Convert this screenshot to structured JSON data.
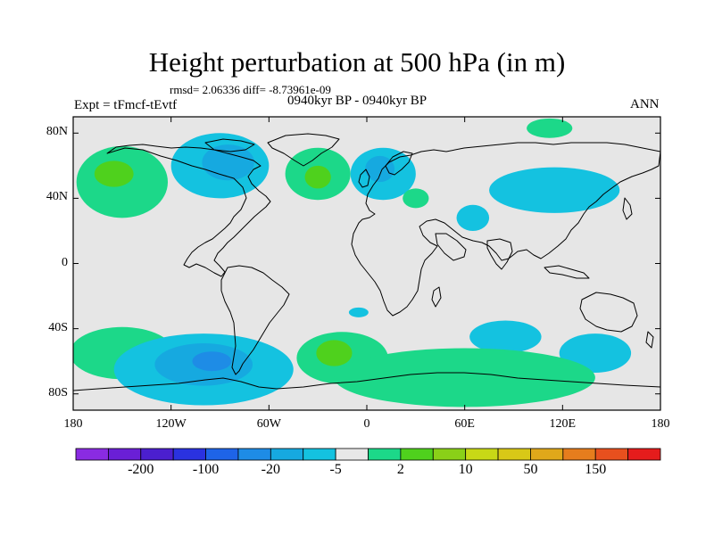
{
  "title": "Height perturbation at 500 hPa (in m)",
  "stats_line": "rmsd= 2.06336 diff= -8.73961e-09",
  "experiment_label": "Expt = tFmcf-tEvtf",
  "period_label": "0940kyr BP - 0940kyr BP",
  "season_label": "ANN",
  "map": {
    "projection": "cylindrical-equidistant",
    "lon_range": [
      -180,
      180
    ],
    "lat_range": [
      -90,
      90
    ],
    "background_color": "#e6e6e6",
    "lat_ticks": [
      {
        "label": "80N",
        "value": 80
      },
      {
        "label": "40N",
        "value": 40
      },
      {
        "label": "0",
        "value": 0
      },
      {
        "label": "40S",
        "value": -40
      },
      {
        "label": "80S",
        "value": -80
      }
    ],
    "lon_ticks": [
      {
        "label": "180",
        "value": -180
      },
      {
        "label": "120W",
        "value": -120
      },
      {
        "label": "60W",
        "value": -60
      },
      {
        "label": "0",
        "value": 0
      },
      {
        "label": "60E",
        "value": 60
      },
      {
        "label": "120E",
        "value": 120
      },
      {
        "label": "180",
        "value": 180
      }
    ]
  },
  "colorbar": {
    "colors": [
      "#8a2be2",
      "#6a1fd6",
      "#4b1fcf",
      "#2a32e0",
      "#1e64e8",
      "#1e8ce6",
      "#16a9e0",
      "#14c2e0",
      "#e8e8e8",
      "#1cd889",
      "#4fd11d",
      "#8ad018",
      "#c8d816",
      "#d8c817",
      "#e0a81a",
      "#e67d1d",
      "#e8501e",
      "#e51c1c"
    ],
    "tick_labels": [
      "-200",
      "-100",
      "-20",
      "-5",
      "2",
      "10",
      "50",
      "150"
    ]
  },
  "chart_data": {
    "type": "heatmap",
    "title": "Height perturbation at 500 hPa (in m)",
    "variable_units": "m",
    "color_scale_labels": [
      "-200",
      "-100",
      "-20",
      "-5",
      "2",
      "10",
      "50",
      "150"
    ],
    "features": [
      {
        "sign": "positive",
        "level": "2-10",
        "lon_center": -150,
        "lat_center": 50
      },
      {
        "sign": "positive",
        "level": "10-20",
        "lon_center": -155,
        "lat_center": 55
      },
      {
        "sign": "negative",
        "level": "-5 to -2",
        "lon_center": -90,
        "lat_center": 60
      },
      {
        "sign": "negative",
        "level": "-10 to -5",
        "lon_center": -85,
        "lat_center": 62
      },
      {
        "sign": "positive",
        "level": "2-10",
        "lon_center": -30,
        "lat_center": 55
      },
      {
        "sign": "positive",
        "level": "10-20",
        "lon_center": -30,
        "lat_center": 53
      },
      {
        "sign": "negative",
        "level": "-5 to -2",
        "lon_center": 10,
        "lat_center": 55
      },
      {
        "sign": "negative",
        "level": "-10 to -5",
        "lon_center": 8,
        "lat_center": 58
      },
      {
        "sign": "positive",
        "level": "2-10",
        "lon_center": 30,
        "lat_center": 40
      },
      {
        "sign": "positive",
        "level": "2-10",
        "lon_center": 112,
        "lat_center": 83
      },
      {
        "sign": "negative",
        "level": "-5 to -2",
        "lon_center": 115,
        "lat_center": 45
      },
      {
        "sign": "negative",
        "level": "-5 to -2",
        "lon_center": 65,
        "lat_center": 28
      },
      {
        "sign": "negative",
        "level": "-5 to -2",
        "lon_center": 85,
        "lat_center": -45
      },
      {
        "sign": "negative",
        "level": "-5 to -2",
        "lon_center": 140,
        "lat_center": -55
      },
      {
        "sign": "positive",
        "level": "2-10",
        "lon_center": -150,
        "lat_center": -55
      },
      {
        "sign": "positive",
        "level": "2-10",
        "lon_center": -15,
        "lat_center": -58
      },
      {
        "sign": "positive",
        "level": "10-20",
        "lon_center": -20,
        "lat_center": -55
      },
      {
        "sign": "negative",
        "level": "-5 to -2",
        "lon_center": -100,
        "lat_center": -65
      },
      {
        "sign": "negative",
        "level": "-10 to -5",
        "lon_center": -100,
        "lat_center": -62
      },
      {
        "sign": "negative",
        "level": "-20 to -10",
        "lon_center": -95,
        "lat_center": -60
      },
      {
        "sign": "positive",
        "level": "2-10",
        "lon_center": 60,
        "lat_center": -70
      },
      {
        "sign": "negative",
        "level": "-5 to -2",
        "lon_center": -5,
        "lat_center": -30
      }
    ]
  }
}
